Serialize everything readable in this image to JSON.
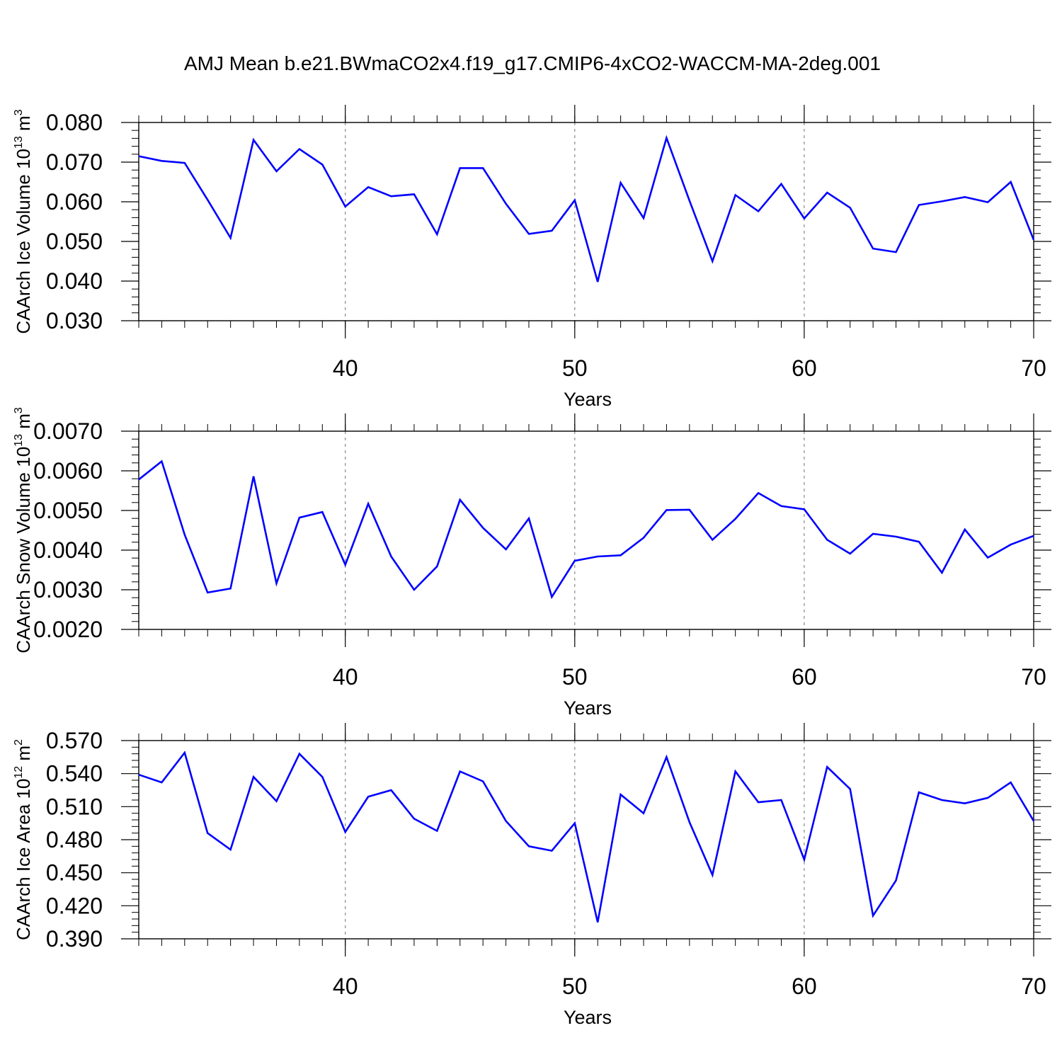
{
  "title": "AMJ Mean b.e21.BWmaCO2x4.f19_g17.CMIP6-4xCO2-WACCM-MA-2deg.001",
  "colors": {
    "line": "#0000ff",
    "axis": "#000000",
    "grid": "#888888"
  },
  "chart_data": [
    {
      "type": "line",
      "ylabel": {
        "text": "CAArch Ice Volume 10",
        "exp": "13",
        "unit": " m",
        "unit_exp": "3"
      },
      "xlabel": "Years",
      "xlim": [
        31,
        70
      ],
      "ylim": [
        0.03,
        0.08
      ],
      "x_ticks": [
        40,
        50,
        60,
        70
      ],
      "x_tick_labels": [
        "40",
        "50",
        "60",
        "70"
      ],
      "y_ticks": [
        0.03,
        0.04,
        0.05,
        0.06,
        0.07,
        0.08
      ],
      "y_tick_labels": [
        "0.030",
        "0.040",
        "0.050",
        "0.060",
        "0.070",
        "0.080"
      ],
      "grid": "dashed verticals at major x ticks",
      "x": [
        31,
        32,
        33,
        34,
        35,
        36,
        37,
        38,
        39,
        40,
        41,
        42,
        43,
        44,
        45,
        46,
        47,
        48,
        49,
        50,
        51,
        52,
        53,
        54,
        55,
        56,
        57,
        58,
        59,
        60,
        61,
        62,
        63,
        64,
        65,
        66,
        67,
        68,
        69,
        70
      ],
      "series": [
        {
          "values": [
            0.0715,
            0.0703,
            0.0698,
            0.0605,
            0.0509,
            0.0756,
            0.0677,
            0.0733,
            0.0694,
            0.0588,
            0.0637,
            0.0614,
            0.0619,
            0.0518,
            0.0685,
            0.0685,
            0.0595,
            0.0519,
            0.0527,
            0.0604,
            0.0398,
            0.0648,
            0.0559,
            0.0761,
            0.0603,
            0.045,
            0.0617,
            0.0576,
            0.0645,
            0.0558,
            0.0623,
            0.0585,
            0.0482,
            0.0473,
            0.0592,
            0.0601,
            0.0612,
            0.0599,
            0.065,
            0.0504
          ]
        }
      ]
    },
    {
      "type": "line",
      "ylabel": {
        "text": "CAArch Snow Volume 10",
        "exp": "13",
        "unit": " m",
        "unit_exp": "3"
      },
      "xlabel": "Years",
      "xlim": [
        31,
        70
      ],
      "ylim": [
        0.002,
        0.007
      ],
      "x_ticks": [
        40,
        50,
        60,
        70
      ],
      "x_tick_labels": [
        "40",
        "50",
        "60",
        "70"
      ],
      "y_ticks": [
        0.002,
        0.003,
        0.004,
        0.005,
        0.006,
        0.007
      ],
      "y_tick_labels": [
        "0.0020",
        "0.0030",
        "0.0040",
        "0.0050",
        "0.0060",
        "0.0070"
      ],
      "grid": "dashed verticals at major x ticks",
      "x": [
        31,
        32,
        33,
        34,
        35,
        36,
        37,
        38,
        39,
        40,
        41,
        42,
        43,
        44,
        45,
        46,
        47,
        48,
        49,
        50,
        51,
        52,
        53,
        54,
        55,
        56,
        57,
        58,
        59,
        60,
        61,
        62,
        63,
        64,
        65,
        66,
        67,
        68,
        69,
        70
      ],
      "series": [
        {
          "values": [
            0.00578,
            0.00624,
            0.00439,
            0.00293,
            0.00303,
            0.00586,
            0.00316,
            0.00482,
            0.00496,
            0.00363,
            0.00517,
            0.00384,
            0.003,
            0.00359,
            0.00527,
            0.00456,
            0.00402,
            0.0048,
            0.00282,
            0.00373,
            0.00384,
            0.00387,
            0.00431,
            0.00501,
            0.00502,
            0.00426,
            0.00479,
            0.00544,
            0.00511,
            0.00503,
            0.00426,
            0.00391,
            0.00441,
            0.00434,
            0.00421,
            0.00343,
            0.00452,
            0.00381,
            0.00414,
            0.00436
          ]
        }
      ]
    },
    {
      "type": "line",
      "ylabel": {
        "text": "CAArch Ice Area 10",
        "exp": "12",
        "unit": " m",
        "unit_exp": "2"
      },
      "xlabel": "Years",
      "xlim": [
        31,
        70
      ],
      "ylim": [
        0.39,
        0.57
      ],
      "x_ticks": [
        40,
        50,
        60,
        70
      ],
      "x_tick_labels": [
        "40",
        "50",
        "60",
        "70"
      ],
      "y_ticks": [
        0.39,
        0.42,
        0.45,
        0.48,
        0.51,
        0.54,
        0.57
      ],
      "y_tick_labels": [
        "0.390",
        "0.420",
        "0.450",
        "0.480",
        "0.510",
        "0.540",
        "0.570"
      ],
      "grid": "dashed verticals at major x ticks",
      "x": [
        31,
        32,
        33,
        34,
        35,
        36,
        37,
        38,
        39,
        40,
        41,
        42,
        43,
        44,
        45,
        46,
        47,
        48,
        49,
        50,
        51,
        52,
        53,
        54,
        55,
        56,
        57,
        58,
        59,
        60,
        61,
        62,
        63,
        64,
        65,
        66,
        67,
        68,
        69,
        70
      ],
      "series": [
        {
          "values": [
            0.539,
            0.532,
            0.559,
            0.486,
            0.471,
            0.537,
            0.515,
            0.558,
            0.537,
            0.487,
            0.519,
            0.525,
            0.499,
            0.488,
            0.542,
            0.533,
            0.497,
            0.474,
            0.47,
            0.495,
            0.405,
            0.521,
            0.504,
            0.555,
            0.496,
            0.448,
            0.542,
            0.514,
            0.516,
            0.462,
            0.546,
            0.526,
            0.411,
            0.443,
            0.523,
            0.516,
            0.513,
            0.518,
            0.532,
            0.497
          ]
        }
      ]
    }
  ]
}
